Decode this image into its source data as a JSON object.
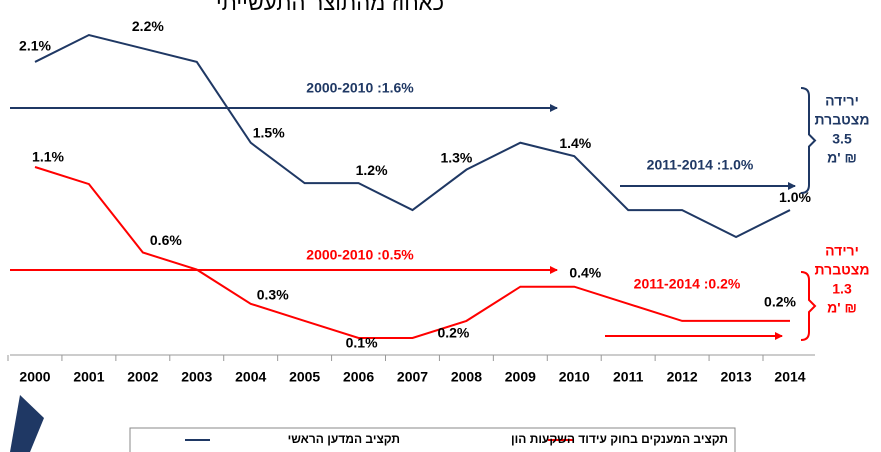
{
  "chart_data": {
    "type": "line",
    "title": "כאחוז מהתוצר התעשייתי",
    "categories": [
      "2000",
      "2001",
      "2002",
      "2003",
      "2004",
      "2005",
      "2006",
      "2007",
      "2008",
      "2009",
      "2010",
      "2011",
      "2012",
      "2013",
      "2014"
    ],
    "series": [
      {
        "name": "תקציב המדען הראשי",
        "color": "#1f3864",
        "values": [
          2.1,
          2.3,
          2.2,
          2.1,
          1.5,
          1.2,
          1.2,
          1.0,
          1.3,
          1.5,
          1.4,
          1.0,
          1.0,
          0.8,
          1.0
        ],
        "value_labels": [
          "2.1%",
          null,
          "2.2%",
          null,
          "1.5%",
          null,
          "1.2%",
          null,
          "1.3%",
          null,
          "1.4%",
          null,
          null,
          null,
          "1.0%"
        ]
      },
      {
        "name": "תקציב המענקים בחוק עידוד השקעות הון",
        "color": "#ff0000",
        "values": [
          1.1,
          1.0,
          0.6,
          0.5,
          0.3,
          0.2,
          0.1,
          0.1,
          0.2,
          0.4,
          0.4,
          0.3,
          0.2,
          0.2,
          0.2
        ],
        "value_labels": [
          "1.1%",
          null,
          "0.6%",
          null,
          "0.3%",
          null,
          "0.1%",
          null,
          "0.2%",
          null,
          "0.4%",
          null,
          null,
          null,
          "0.2%"
        ]
      }
    ],
    "annotations": [
      {
        "text": "2000-2010 :1.6%",
        "series": 0
      },
      {
        "text": "2011-2014 :1.0%",
        "series": 0
      },
      {
        "text": "2000-2010 :0.5%",
        "series": 1
      },
      {
        "text": "2011-2014 :0.2%",
        "series": 1
      },
      {
        "lines": [
          "ירידה",
          "מצטברת",
          "3.5",
          "מ' ₪"
        ],
        "series": 0
      },
      {
        "lines": [
          "ירידה",
          "מצטברת",
          "1.3",
          "מ' ₪"
        ],
        "series": 1
      }
    ]
  }
}
